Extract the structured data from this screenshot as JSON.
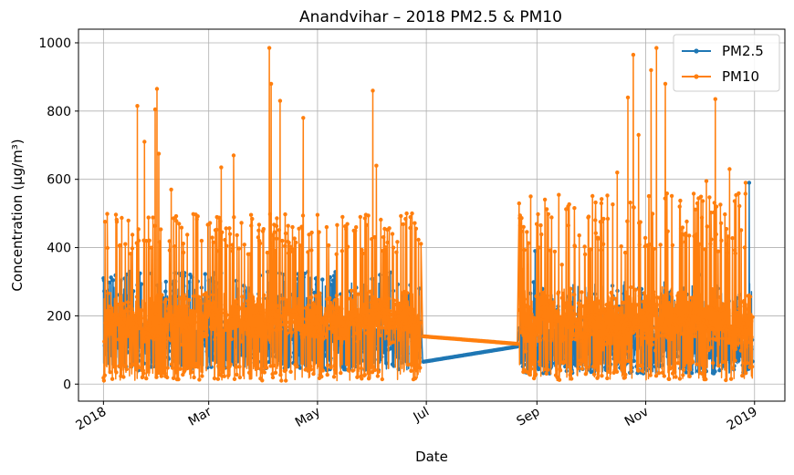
{
  "chart_data": {
    "type": "line",
    "title": "Anandvihar – 2018 PM2.5 & PM10",
    "xlabel": "Date",
    "ylabel": "Concentration (µg/m³)",
    "grid": true,
    "legend_position": "top-right",
    "x_tick_labels": [
      "2018",
      "Mar",
      "May",
      "Jul",
      "Sep",
      "Nov",
      "2019"
    ],
    "x_tick_dates": [
      "2018-01-01",
      "2018-03-01",
      "2018-05-01",
      "2018-07-01",
      "2018-09-01",
      "2018-11-01",
      "2019-01-01"
    ],
    "xlim": [
      "2017-12-18",
      "2019-01-18"
    ],
    "y_ticks": [
      0,
      200,
      400,
      600,
      800,
      1000
    ],
    "ylim": [
      -50,
      1040
    ],
    "series": [
      {
        "name": "PM2.5",
        "color": "#1f77b4",
        "marker": "circle",
        "segments": [
          {
            "start": "2018-01-01",
            "end": "2018-06-28",
            "low": [
              40,
              90
            ],
            "median": [
              100,
              175
            ],
            "high": [
              250,
              330
            ],
            "spikes": [
              {
                "date": "2018-01-01",
                "value": 310
              },
              {
                "date": "2018-01-20",
                "value": 290
              },
              {
                "date": "2018-02-05",
                "value": 300
              },
              {
                "date": "2018-04-10",
                "value": 240
              },
              {
                "date": "2018-05-01",
                "value": 300
              },
              {
                "date": "2018-06-05",
                "value": 320
              },
              {
                "date": "2018-06-22",
                "value": 290
              },
              {
                "date": "2018-06-27",
                "value": 280
              }
            ]
          },
          {
            "start": "2018-08-22",
            "end": "2018-12-31",
            "low": [
              30,
              70
            ],
            "median": [
              80,
              160
            ],
            "high": [
              200,
              300
            ],
            "spikes": [
              {
                "date": "2018-08-31",
                "value": 390
              },
              {
                "date": "2018-09-10",
                "value": 250
              },
              {
                "date": "2018-10-20",
                "value": 300
              },
              {
                "date": "2018-12-01",
                "value": 320
              },
              {
                "date": "2018-12-29",
                "value": 590
              }
            ]
          }
        ],
        "gap_line": [
          {
            "date": "2018-06-29",
            "value": 65
          },
          {
            "date": "2018-08-21",
            "value": 110
          }
        ]
      },
      {
        "name": "PM10",
        "color": "#ff7f0e",
        "marker": "circle",
        "segments": [
          {
            "start": "2018-01-01",
            "end": "2018-06-28",
            "low": [
              10,
              60
            ],
            "median": [
              140,
              250
            ],
            "high": [
              380,
              500
            ],
            "spikes": [
              {
                "date": "2018-01-20",
                "value": 815
              },
              {
                "date": "2018-01-24",
                "value": 710
              },
              {
                "date": "2018-01-30",
                "value": 805
              },
              {
                "date": "2018-01-31",
                "value": 865
              },
              {
                "date": "2018-02-01",
                "value": 675
              },
              {
                "date": "2018-02-08",
                "value": 570
              },
              {
                "date": "2018-02-25",
                "value": 420
              },
              {
                "date": "2018-03-08",
                "value": 635
              },
              {
                "date": "2018-03-15",
                "value": 670
              },
              {
                "date": "2018-03-29",
                "value": 450
              },
              {
                "date": "2018-04-04",
                "value": 985
              },
              {
                "date": "2018-04-05",
                "value": 880
              },
              {
                "date": "2018-04-10",
                "value": 830
              },
              {
                "date": "2018-04-17",
                "value": 460
              },
              {
                "date": "2018-04-23",
                "value": 780
              },
              {
                "date": "2018-05-15",
                "value": 490
              },
              {
                "date": "2018-05-25",
                "value": 490
              },
              {
                "date": "2018-06-01",
                "value": 860
              },
              {
                "date": "2018-06-03",
                "value": 640
              },
              {
                "date": "2018-06-12",
                "value": 440
              },
              {
                "date": "2018-06-20",
                "value": 500
              },
              {
                "date": "2018-06-23",
                "value": 500
              }
            ]
          },
          {
            "start": "2018-08-22",
            "end": "2018-12-31",
            "low": [
              10,
              70
            ],
            "median": [
              120,
              260
            ],
            "high": [
              380,
              560
            ],
            "spikes": [
              {
                "date": "2018-08-24",
                "value": 335
              },
              {
                "date": "2018-09-02",
                "value": 400
              },
              {
                "date": "2018-09-15",
                "value": 350
              },
              {
                "date": "2018-09-28",
                "value": 380
              },
              {
                "date": "2018-10-07",
                "value": 475
              },
              {
                "date": "2018-10-16",
                "value": 620
              },
              {
                "date": "2018-10-22",
                "value": 840
              },
              {
                "date": "2018-10-25",
                "value": 965
              },
              {
                "date": "2018-10-28",
                "value": 730
              },
              {
                "date": "2018-11-04",
                "value": 920
              },
              {
                "date": "2018-11-07",
                "value": 985
              },
              {
                "date": "2018-11-12",
                "value": 880
              },
              {
                "date": "2018-11-20",
                "value": 520
              },
              {
                "date": "2018-12-05",
                "value": 595
              },
              {
                "date": "2018-12-10",
                "value": 835
              },
              {
                "date": "2018-12-18",
                "value": 630
              },
              {
                "date": "2018-12-27",
                "value": 590
              }
            ]
          }
        ],
        "gap_line": [
          {
            "date": "2018-06-29",
            "value": 140
          },
          {
            "date": "2018-08-21",
            "value": 118
          }
        ]
      }
    ]
  }
}
